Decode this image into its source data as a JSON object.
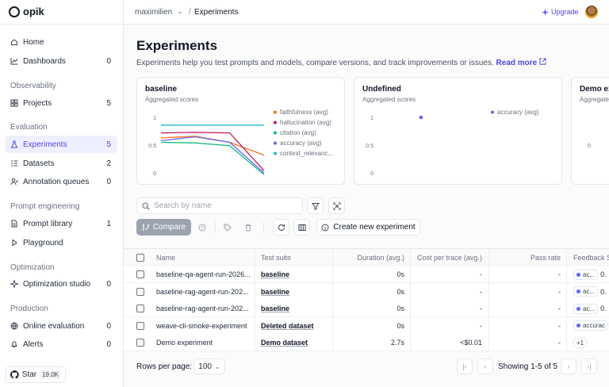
{
  "app": {
    "logo_text": "opik"
  },
  "sidebar": {
    "items": [
      {
        "label": "Home",
        "icon": "home-icon",
        "count": ""
      },
      {
        "label": "Dashboards",
        "icon": "chart-icon",
        "count": "0"
      },
      {
        "label": "Projects",
        "icon": "grid-icon",
        "count": "5"
      },
      {
        "label": "Experiments",
        "icon": "flask-icon",
        "count": "5"
      },
      {
        "label": "Datasets",
        "icon": "list-icon",
        "count": "2"
      },
      {
        "label": "Annotation queues",
        "icon": "people-icon",
        "count": "0"
      },
      {
        "label": "Prompt library",
        "icon": "file-icon",
        "count": "1"
      },
      {
        "label": "Playground",
        "icon": "play-icon",
        "count": ""
      },
      {
        "label": "Optimization studio",
        "icon": "sparkle-icon",
        "count": "0"
      },
      {
        "label": "Online evaluation",
        "icon": "globe-icon",
        "count": "0"
      },
      {
        "label": "Alerts",
        "icon": "bell-icon",
        "count": "0"
      }
    ],
    "sections": [
      "Observability",
      "Evaluation",
      "Prompt engineering",
      "Optimization",
      "Production"
    ],
    "star_label": "Star",
    "star_count": "19.0K"
  },
  "topbar": {
    "workspace": "maximilien",
    "page": "Experiments",
    "upgrade_label": "Upgrade"
  },
  "main": {
    "title": "Experiments",
    "description": "Experiments help you test prompts and models, compare versions, and track improvements or issues.",
    "read_more": "Read more"
  },
  "cards": [
    {
      "title": "baseline",
      "subtitle": "Aggregated scores"
    },
    {
      "title": "Undefined",
      "subtitle": "Aggregated scores"
    },
    {
      "title": "Demo experiment",
      "subtitle": "Aggregated scores"
    }
  ],
  "chart_data": [
    {
      "type": "line",
      "title": "baseline",
      "subtitle": "Aggregated scores",
      "x": [
        1,
        2,
        3,
        4
      ],
      "ylim": [
        0,
        1
      ],
      "yticks": [
        "1",
        "0.5",
        "0"
      ],
      "legend_position": "right",
      "series": [
        {
          "name": "faithfulness (avg)",
          "color": "#f97316",
          "values": [
            0.63,
            0.66,
            0.55,
            0.32
          ]
        },
        {
          "name": "hallucination (avg)",
          "color": "#be185d",
          "values": [
            0.72,
            0.73,
            0.72,
            0.04
          ]
        },
        {
          "name": "citation (avg)",
          "color": "#10b981",
          "values": [
            0.55,
            0.54,
            0.49,
            -0.03
          ]
        },
        {
          "name": "accuracy (avg)",
          "color": "#6366f1",
          "values": [
            0.58,
            0.65,
            0.55,
            0.0
          ]
        },
        {
          "name": "context_relevanc...",
          "color": "#22b8cf",
          "values": [
            0.86,
            0.86,
            0.86,
            0.86
          ]
        }
      ]
    },
    {
      "type": "scatter",
      "title": "Undefined",
      "subtitle": "Aggregated scores",
      "ylim": [
        0,
        1
      ],
      "yticks": [
        "1",
        "0.5",
        "0"
      ],
      "legend_position": "right",
      "series": [
        {
          "name": "accuracy (avg)",
          "color": "#6366f1",
          "values": [
            1.0
          ]
        }
      ]
    },
    {
      "type": "line",
      "title": "Demo experiment",
      "subtitle": "Aggregated scores",
      "yticks": [
        "0"
      ]
    }
  ],
  "toolbar": {
    "search_placeholder": "Search by name",
    "compare_label": "Compare",
    "create_label": "Create new experiment"
  },
  "table": {
    "columns": [
      "Name",
      "Test suite",
      "Duration (avg.)",
      "Cost per trace (avg.)",
      "Pass rate",
      "Feedback S"
    ],
    "rows": [
      {
        "name": "baseline-qa-agent-run-2026...",
        "suite": "baseline",
        "duration": "0s",
        "cost": "-",
        "pass": "-",
        "feedback": "ac...",
        "feedback_val": "0."
      },
      {
        "name": "baseline-rag-agent-run-202...",
        "suite": "baseline",
        "duration": "0s",
        "cost": "-",
        "pass": "-",
        "feedback": "ac...",
        "feedback_val": "0."
      },
      {
        "name": "baseline-rag-agent-run-202...",
        "suite": "baseline",
        "duration": "0s",
        "cost": "-",
        "pass": "-",
        "feedback": "ac...",
        "feedback_val": "0."
      },
      {
        "name": "weave-cli-smoke-experiment",
        "suite": "Deleted dataset",
        "duration": "0s",
        "cost": "-",
        "pass": "-",
        "feedback": "accurac",
        "feedback_val": ""
      },
      {
        "name": "Demo experiment",
        "suite": "Demo dataset",
        "duration": "2.7s",
        "cost": "<$0.01",
        "pass": "-",
        "feedback": "+1",
        "feedback_val": ""
      }
    ]
  },
  "pagination": {
    "rows_per_page_label": "Rows per page:",
    "rows_per_page_value": "100",
    "showing": "Showing 1-5 of 5"
  }
}
